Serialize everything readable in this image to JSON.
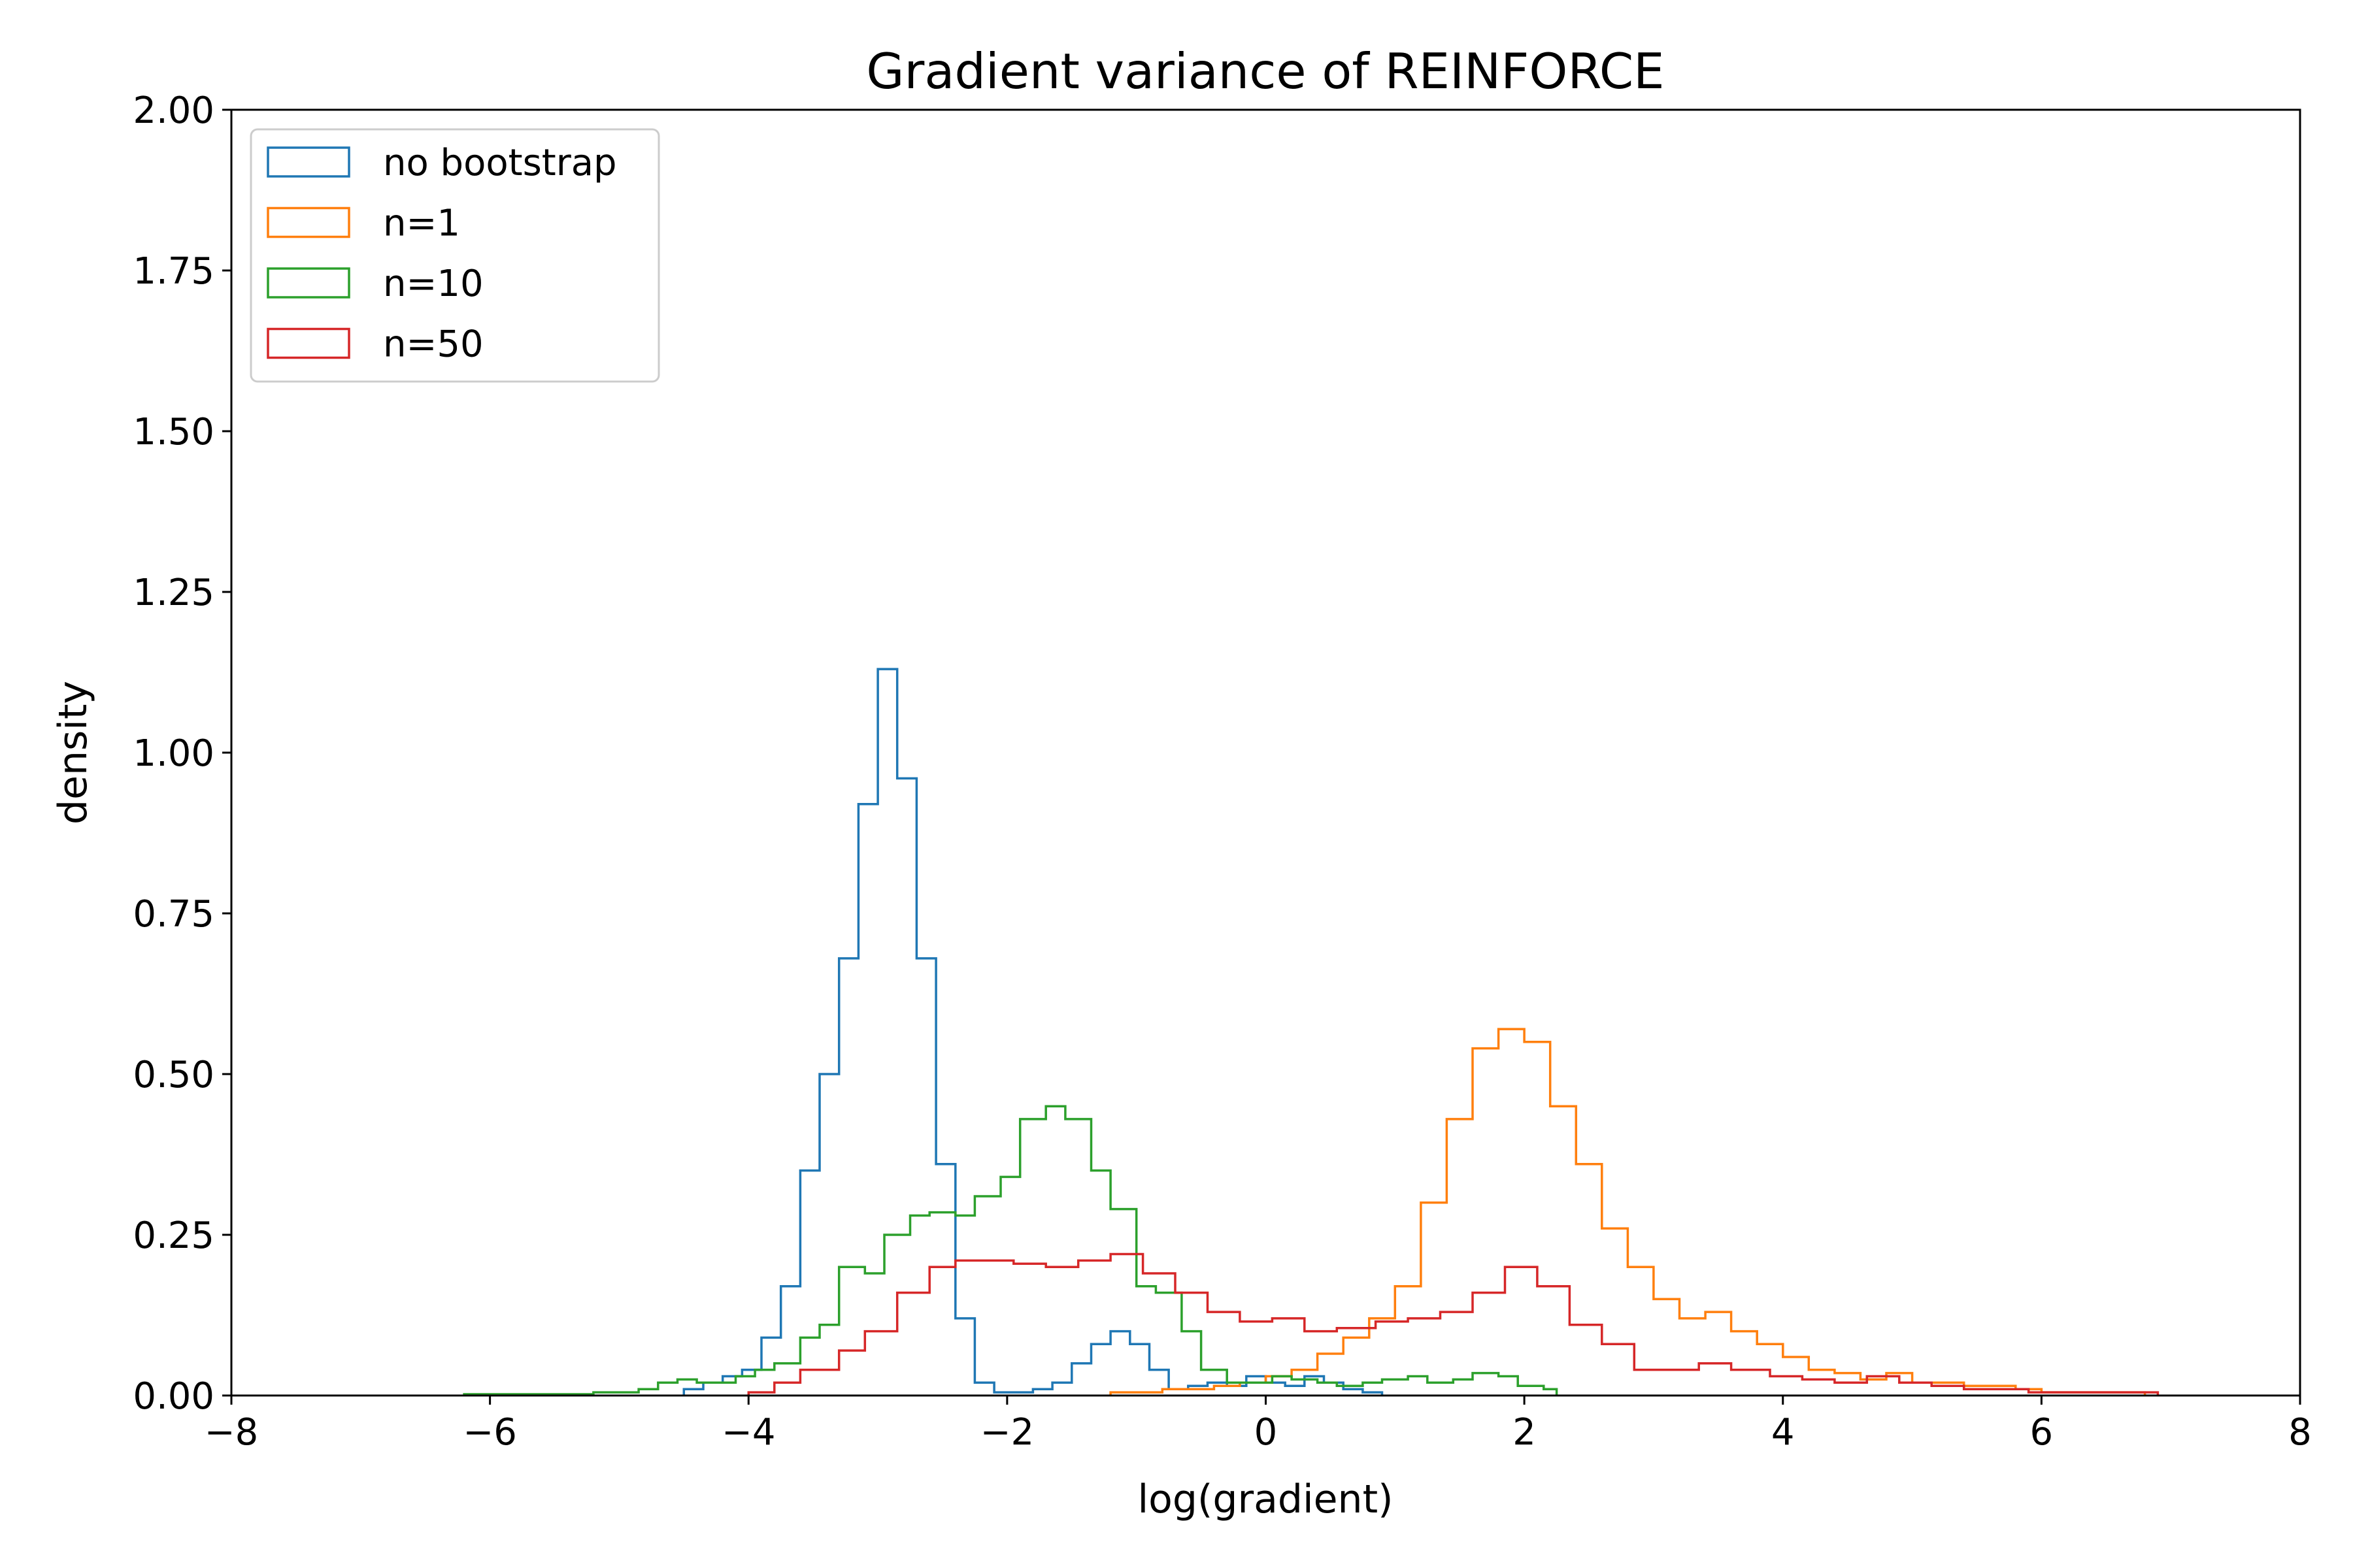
{
  "chart_data": {
    "type": "histogram",
    "title": "Gradient variance of REINFORCE",
    "xlabel": "log(gradient)",
    "ylabel": "density",
    "xlim": [
      -8,
      8
    ],
    "ylim": [
      0,
      2
    ],
    "xticks": [
      -8,
      -6,
      -4,
      -2,
      0,
      2,
      4,
      6,
      8
    ],
    "xtick_labels": [
      "−8",
      "−6",
      "−4",
      "−2",
      "0",
      "2",
      "4",
      "6",
      "8"
    ],
    "yticks": [
      0,
      0.25,
      0.5,
      0.75,
      1.0,
      1.25,
      1.5,
      1.75,
      2.0
    ],
    "ytick_labels": [
      "0.00",
      "0.25",
      "0.50",
      "0.75",
      "1.00",
      "1.25",
      "1.50",
      "1.75",
      "2.00"
    ],
    "grid": false,
    "legend_position": "top-left",
    "series": [
      {
        "name": "no bootstrap",
        "color": "#1f77b4",
        "bin_edges": [
          -4.5,
          -4.35,
          -4.2,
          -4.05,
          -3.9,
          -3.75,
          -3.6,
          -3.45,
          -3.3,
          -3.15,
          -3.0,
          -2.85,
          -2.7,
          -2.55,
          -2.4,
          -2.25,
          -2.1,
          -1.95,
          -1.8,
          -1.65,
          -1.5,
          -1.35,
          -1.2,
          -1.05,
          -0.9,
          -0.75,
          -0.6,
          -0.45,
          -0.3,
          -0.15,
          0.0,
          0.15,
          0.3,
          0.45,
          0.6,
          0.75,
          0.9
        ],
        "densities": [
          0.01,
          0.02,
          0.03,
          0.04,
          0.09,
          0.17,
          0.35,
          0.5,
          0.68,
          0.92,
          1.13,
          0.96,
          0.68,
          0.36,
          0.12,
          0.02,
          0.005,
          0.005,
          0.01,
          0.02,
          0.05,
          0.08,
          0.1,
          0.08,
          0.04,
          0.01,
          0.015,
          0.02,
          0.015,
          0.03,
          0.02,
          0.015,
          0.03,
          0.02,
          0.01,
          0.005
        ]
      },
      {
        "name": "n=1",
        "color": "#ff7f0e",
        "bin_edges": [
          -1.2,
          -1.0,
          -0.8,
          -0.6,
          -0.4,
          -0.2,
          0.0,
          0.2,
          0.4,
          0.6,
          0.8,
          1.0,
          1.2,
          1.4,
          1.6,
          1.8,
          2.0,
          2.2,
          2.4,
          2.6,
          2.8,
          3.0,
          3.2,
          3.4,
          3.6,
          3.8,
          4.0,
          4.2,
          4.4,
          4.6,
          4.8,
          5.0,
          5.2,
          5.4,
          5.6,
          5.8,
          6.0,
          6.2,
          6.4,
          6.6,
          6.8
        ],
        "densities": [
          0.005,
          0.005,
          0.01,
          0.01,
          0.015,
          0.02,
          0.03,
          0.04,
          0.065,
          0.09,
          0.12,
          0.17,
          0.3,
          0.43,
          0.54,
          0.57,
          0.55,
          0.45,
          0.36,
          0.26,
          0.2,
          0.15,
          0.12,
          0.13,
          0.1,
          0.08,
          0.06,
          0.04,
          0.035,
          0.025,
          0.035,
          0.02,
          0.02,
          0.015,
          0.015,
          0.01,
          0.005,
          0.005,
          0.005,
          0.005
        ]
      },
      {
        "name": "n=10",
        "color": "#2ca02c",
        "bin_edges": [
          -6.2,
          -5.2,
          -4.85,
          -4.7,
          -4.55,
          -4.4,
          -4.25,
          -4.1,
          -3.95,
          -3.8,
          -3.6,
          -3.45,
          -3.3,
          -3.1,
          -2.95,
          -2.75,
          -2.6,
          -2.4,
          -2.25,
          -2.05,
          -1.9,
          -1.7,
          -1.55,
          -1.35,
          -1.2,
          -1.0,
          -0.85,
          -0.65,
          -0.5,
          -0.3,
          -0.15,
          0.05,
          0.2,
          0.4,
          0.55,
          0.75,
          0.9,
          1.1,
          1.25,
          1.45,
          1.6,
          1.8,
          1.95,
          2.15,
          2.25
        ],
        "densities": [
          0.002,
          0.005,
          0.01,
          0.02,
          0.025,
          0.02,
          0.02,
          0.03,
          0.04,
          0.05,
          0.09,
          0.11,
          0.2,
          0.19,
          0.25,
          0.28,
          0.285,
          0.28,
          0.31,
          0.34,
          0.43,
          0.45,
          0.43,
          0.35,
          0.29,
          0.17,
          0.16,
          0.1,
          0.04,
          0.02,
          0.02,
          0.03,
          0.025,
          0.02,
          0.015,
          0.02,
          0.025,
          0.03,
          0.02,
          0.025,
          0.035,
          0.03,
          0.015,
          0.01
        ]
      },
      {
        "name": "n=50",
        "color": "#d62728",
        "bin_edges": [
          -4.0,
          -3.8,
          -3.6,
          -3.3,
          -3.1,
          -2.85,
          -2.6,
          -2.4,
          -2.15,
          -1.95,
          -1.7,
          -1.45,
          -1.2,
          -0.95,
          -0.7,
          -0.45,
          -0.2,
          0.05,
          0.3,
          0.55,
          0.85,
          1.1,
          1.35,
          1.6,
          1.85,
          2.1,
          2.35,
          2.6,
          2.85,
          3.1,
          3.35,
          3.6,
          3.9,
          4.15,
          4.4,
          4.65,
          4.9,
          5.15,
          5.4,
          5.65,
          5.9,
          6.15,
          6.4,
          6.9
        ],
        "densities": [
          0.005,
          0.02,
          0.04,
          0.07,
          0.1,
          0.16,
          0.2,
          0.21,
          0.21,
          0.205,
          0.2,
          0.21,
          0.22,
          0.19,
          0.16,
          0.13,
          0.115,
          0.12,
          0.1,
          0.105,
          0.115,
          0.12,
          0.13,
          0.16,
          0.2,
          0.17,
          0.11,
          0.08,
          0.04,
          0.04,
          0.05,
          0.04,
          0.03,
          0.025,
          0.02,
          0.03,
          0.02,
          0.015,
          0.01,
          0.01,
          0.005,
          0.005,
          0.005
        ]
      }
    ]
  }
}
